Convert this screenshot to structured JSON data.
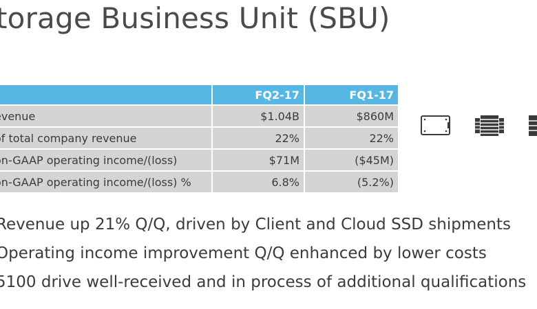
{
  "title": "torage Business Unit (SBU)",
  "table": {
    "headers": [
      "",
      "FQ2-17",
      "FQ1-17"
    ],
    "rows": [
      {
        "label": "evenue",
        "a": "$1.04B",
        "b": "$860M"
      },
      {
        "label": " of total company revenue",
        "a": "22%",
        "b": "22%"
      },
      {
        "label": "on-GAAP operating income/(loss)",
        "a": "$71M",
        "b": "($45M)"
      },
      {
        "label": "on-GAAP operating income/(loss) %",
        "a": "6.8%",
        "b": "(5.2%)"
      }
    ]
  },
  "icons": [
    "ssd-drive-icon",
    "server-rack-icon",
    "storage-array-icon"
  ],
  "bullets": [
    "Revenue up 21% Q/Q, driven by Client and Cloud SSD shipments",
    "Operating income improvement Q/Q enhanced by lower costs",
    "5100 drive well-received and in process of additional qualifications"
  ],
  "colors": {
    "header_bg": "#55b7e2",
    "row_bg": "#d4d4d4",
    "text": "#3b3b3b"
  }
}
